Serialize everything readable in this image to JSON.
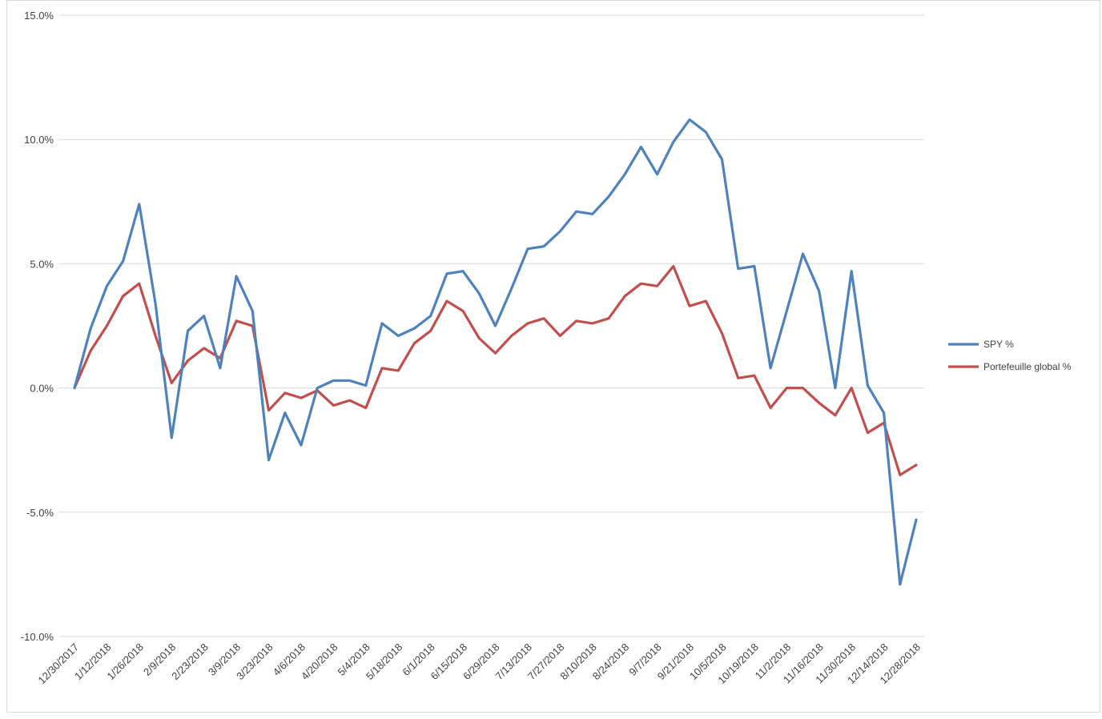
{
  "chart_data": {
    "type": "line",
    "title": "",
    "xlabel": "",
    "ylabel": "",
    "ylim": [
      -10,
      15
    ],
    "yticks": [
      15,
      10,
      5,
      0,
      -5,
      -10
    ],
    "ytick_labels": [
      "15.0%",
      "10.0%",
      "5.0%",
      "0.0%",
      "-5.0%",
      "-10.0%"
    ],
    "grid": "horizontal",
    "legend_position": "right",
    "x_tick_labels": [
      "12/30/2017",
      "1/12/2018",
      "1/26/2018",
      "2/9/2018",
      "2/23/2018",
      "3/9/2018",
      "3/23/2018",
      "4/6/2018",
      "4/20/2018",
      "5/4/2018",
      "5/18/2018",
      "6/1/2018",
      "6/15/2018",
      "6/29/2018",
      "7/13/2018",
      "7/27/2018",
      "8/10/2018",
      "8/24/2018",
      "9/7/2018",
      "9/21/2018",
      "10/5/2018",
      "10/19/2018",
      "11/2/2018",
      "11/16/2018",
      "11/30/2018",
      "12/14/2018",
      "12/28/2018"
    ],
    "series": [
      {
        "name": "SPY %",
        "color": "#4f81bd",
        "values": [
          0.0,
          2.4,
          4.1,
          5.1,
          7.4,
          3.4,
          -2.0,
          2.3,
          2.9,
          0.8,
          4.5,
          3.1,
          -2.9,
          -1.0,
          -2.3,
          0.0,
          0.3,
          0.3,
          0.1,
          2.6,
          2.1,
          2.4,
          2.9,
          4.6,
          4.7,
          3.8,
          2.5,
          4.0,
          5.6,
          5.7,
          6.3,
          7.1,
          7.0,
          7.7,
          8.6,
          9.7,
          8.6,
          9.9,
          10.8,
          10.3,
          9.2,
          4.8,
          4.9,
          0.8,
          3.1,
          5.4,
          3.9,
          0.0,
          4.7,
          0.1,
          -1.0,
          -7.9,
          -5.3
        ]
      },
      {
        "name": "Portefeuille global %",
        "color": "#c0504d",
        "values": [
          0.0,
          1.5,
          2.5,
          3.7,
          4.2,
          2.1,
          0.2,
          1.1,
          1.6,
          1.2,
          2.7,
          2.5,
          -0.9,
          -0.2,
          -0.4,
          -0.1,
          -0.7,
          -0.5,
          -0.8,
          0.8,
          0.7,
          1.8,
          2.3,
          3.5,
          3.1,
          2.0,
          1.4,
          2.1,
          2.6,
          2.8,
          2.1,
          2.7,
          2.6,
          2.8,
          3.7,
          4.2,
          4.1,
          4.9,
          3.3,
          3.5,
          2.2,
          0.4,
          0.5,
          -0.8,
          0.0,
          0.0,
          -0.6,
          -1.1,
          0.0,
          -1.8,
          -1.4,
          -3.5,
          -3.1
        ]
      }
    ]
  }
}
